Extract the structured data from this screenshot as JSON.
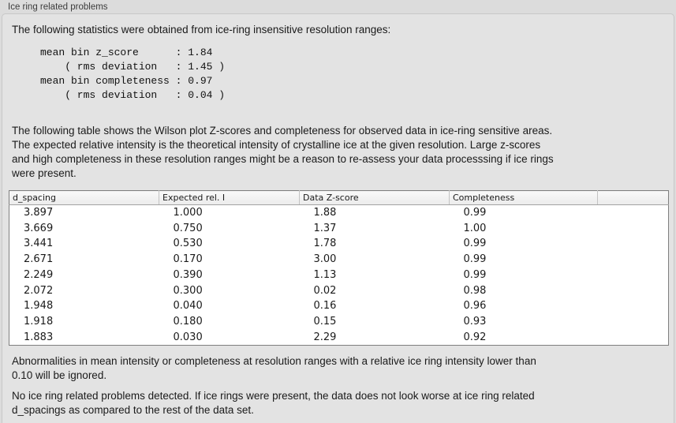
{
  "panel": {
    "title": "Ice ring related problems"
  },
  "intro": "The following statistics were obtained from ice-ring insensitive resolution ranges:",
  "stats_block": "mean bin z_score      : 1.84\n    ( rms deviation   : 1.45 )\nmean bin completeness : 0.97\n    ( rms deviation   : 0.04 )",
  "description": "The following table shows the Wilson plot Z-scores and completeness for observed data in ice-ring sensitive areas.\nThe expected relative intensity is the theoretical intensity of crystalline ice at the given resolution. Large z-scores\nand high completeness in these resolution ranges might be a reason to re-assess your data processsing if ice rings\nwere present.",
  "table": {
    "columns": [
      "d_spacing",
      "Expected rel. I",
      "Data Z-score",
      "Completeness"
    ],
    "rows": [
      [
        "3.897",
        "1.000",
        "1.88",
        "0.99"
      ],
      [
        "3.669",
        "0.750",
        "1.37",
        "1.00"
      ],
      [
        "3.441",
        "0.530",
        "1.78",
        "0.99"
      ],
      [
        "2.671",
        "0.170",
        "3.00",
        "0.99"
      ],
      [
        "2.249",
        "0.390",
        "1.13",
        "0.99"
      ],
      [
        "2.072",
        "0.300",
        "0.02",
        "0.98"
      ],
      [
        "1.948",
        "0.040",
        "0.16",
        "0.96"
      ],
      [
        "1.918",
        "0.180",
        "0.15",
        "0.93"
      ],
      [
        "1.883",
        "0.030",
        "2.29",
        "0.92"
      ]
    ]
  },
  "notes": {
    "ignore_note": "Abnormalities in mean intensity or completeness at resolution ranges with a relative ice ring intensity lower than\n0.10 will be ignored.",
    "conclusion": "No ice ring related problems detected. If ice rings were present, the data does not look worse at ice ring related\nd_spacings as compared to the rest of the data set."
  },
  "colors": {
    "page_bg": "#dcdcdc",
    "panel_bg": "#e3e3e3",
    "panel_border": "#c7c7c7",
    "table_border": "#7f7f7f",
    "table_header_bg": "#f2f2f2",
    "table_body_bg": "#ffffff",
    "text": "#1a1a1a"
  }
}
